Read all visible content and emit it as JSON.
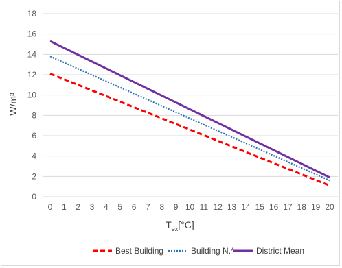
{
  "chart_data": {
    "type": "line",
    "title": "",
    "xlabel": "Tex[°C]",
    "xlabel_main": "T",
    "xlabel_sub": "ex",
    "xlabel_unit": "[°C]",
    "ylabel": "W/m³",
    "x": [
      0,
      1,
      2,
      3,
      4,
      5,
      6,
      7,
      8,
      9,
      10,
      11,
      12,
      13,
      14,
      15,
      16,
      17,
      18,
      19,
      20
    ],
    "ylim": [
      0,
      18
    ],
    "yticks": [
      0,
      2,
      4,
      6,
      8,
      10,
      12,
      14,
      16,
      18
    ],
    "grid": true,
    "legend": "bottom",
    "series": [
      {
        "name": "Best Building",
        "color": "#ff0000",
        "style": "dashed",
        "values": [
          12.1,
          11.55,
          11.0,
          10.45,
          9.9,
          9.35,
          8.8,
          8.25,
          7.7,
          7.15,
          6.6,
          6.05,
          5.5,
          4.95,
          4.4,
          3.85,
          3.3,
          2.75,
          2.2,
          1.65,
          1.1
        ]
      },
      {
        "name": "Building N.*",
        "color": "#2e75b6",
        "style": "dotted",
        "values": [
          13.8,
          13.19,
          12.58,
          11.97,
          11.36,
          10.75,
          10.14,
          9.53,
          8.92,
          8.31,
          7.7,
          7.09,
          6.48,
          5.87,
          5.26,
          4.65,
          4.04,
          3.43,
          2.82,
          2.21,
          1.6
        ]
      },
      {
        "name": "District Mean",
        "color": "#7030a0",
        "style": "solid",
        "values": [
          15.3,
          14.63,
          13.96,
          13.29,
          12.62,
          11.95,
          11.28,
          10.61,
          9.94,
          9.27,
          8.6,
          7.93,
          7.26,
          6.59,
          5.92,
          5.25,
          4.58,
          3.91,
          3.24,
          2.57,
          1.9
        ]
      }
    ]
  }
}
